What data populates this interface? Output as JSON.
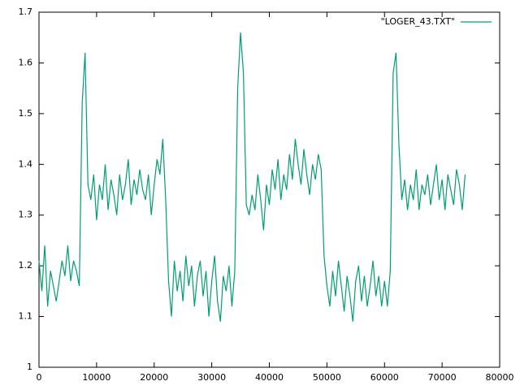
{
  "chart_data": {
    "type": "line",
    "x": [
      0,
      500,
      1000,
      1500,
      2000,
      2500,
      3000,
      3500,
      4000,
      4500,
      5000,
      5500,
      6000,
      6500,
      7000,
      7500,
      8000,
      8500,
      9000,
      9500,
      10000,
      10500,
      11000,
      11500,
      12000,
      12500,
      13000,
      13500,
      14000,
      14500,
      15000,
      15500,
      16000,
      16500,
      17000,
      17500,
      18000,
      18500,
      19000,
      19500,
      20000,
      20500,
      21000,
      21500,
      22000,
      22500,
      23000,
      23500,
      24000,
      24500,
      25000,
      25500,
      26000,
      26500,
      27000,
      27500,
      28000,
      28500,
      29000,
      29500,
      30000,
      30500,
      31000,
      31500,
      32000,
      32500,
      33000,
      33500,
      34000,
      34500,
      35000,
      35500,
      36000,
      36500,
      37000,
      37500,
      38000,
      38500,
      39000,
      39500,
      40000,
      40500,
      41000,
      41500,
      42000,
      42500,
      43000,
      43500,
      44000,
      44500,
      45000,
      45500,
      46000,
      46500,
      47000,
      47500,
      48000,
      48500,
      49000,
      49500,
      50000,
      50500,
      51000,
      51500,
      52000,
      52500,
      53000,
      53500,
      54000,
      54500,
      55000,
      55500,
      56000,
      56500,
      57000,
      57500,
      58000,
      58500,
      59000,
      59500,
      60000,
      60500,
      61000,
      61500,
      62000,
      62500,
      63000,
      63500,
      64000,
      64500,
      65000,
      65500,
      66000,
      66500,
      67000,
      67500,
      68000,
      68500,
      69000,
      69500,
      70000,
      70500,
      71000,
      71500,
      72000,
      72500,
      73000,
      73500,
      74000
    ],
    "series": [
      {
        "name": "\"LOGER_43.TXT\"",
        "color": "#009e73",
        "values": [
          1.21,
          1.15,
          1.24,
          1.12,
          1.19,
          1.16,
          1.13,
          1.17,
          1.21,
          1.18,
          1.24,
          1.17,
          1.21,
          1.19,
          1.16,
          1.52,
          1.62,
          1.36,
          1.33,
          1.38,
          1.29,
          1.36,
          1.33,
          1.4,
          1.31,
          1.37,
          1.34,
          1.3,
          1.38,
          1.33,
          1.36,
          1.41,
          1.32,
          1.37,
          1.34,
          1.39,
          1.35,
          1.33,
          1.38,
          1.3,
          1.36,
          1.41,
          1.38,
          1.45,
          1.33,
          1.17,
          1.1,
          1.21,
          1.15,
          1.19,
          1.13,
          1.22,
          1.16,
          1.2,
          1.12,
          1.18,
          1.21,
          1.14,
          1.19,
          1.1,
          1.17,
          1.22,
          1.13,
          1.09,
          1.18,
          1.15,
          1.2,
          1.12,
          1.19,
          1.55,
          1.66,
          1.58,
          1.32,
          1.3,
          1.34,
          1.31,
          1.38,
          1.33,
          1.27,
          1.36,
          1.32,
          1.39,
          1.35,
          1.41,
          1.33,
          1.38,
          1.35,
          1.42,
          1.37,
          1.45,
          1.4,
          1.36,
          1.43,
          1.38,
          1.34,
          1.4,
          1.37,
          1.42,
          1.39,
          1.22,
          1.16,
          1.12,
          1.19,
          1.14,
          1.21,
          1.16,
          1.11,
          1.18,
          1.14,
          1.09,
          1.17,
          1.2,
          1.13,
          1.18,
          1.12,
          1.16,
          1.21,
          1.14,
          1.18,
          1.12,
          1.17,
          1.12,
          1.19,
          1.58,
          1.62,
          1.44,
          1.33,
          1.37,
          1.31,
          1.36,
          1.33,
          1.39,
          1.31,
          1.36,
          1.34,
          1.38,
          1.32,
          1.36,
          1.4,
          1.33,
          1.37,
          1.31,
          1.38,
          1.35,
          1.32,
          1.39,
          1.36,
          1.31,
          1.38
        ]
      }
    ],
    "xlim": [
      0,
      80000
    ],
    "xticks": [
      0,
      10000,
      20000,
      30000,
      40000,
      50000,
      60000,
      70000,
      80000
    ],
    "ylim": [
      1,
      1.7
    ],
    "yticks": [
      1,
      1.1,
      1.2,
      1.3,
      1.4,
      1.5,
      1.6,
      1.7
    ],
    "legend": "top-right"
  }
}
